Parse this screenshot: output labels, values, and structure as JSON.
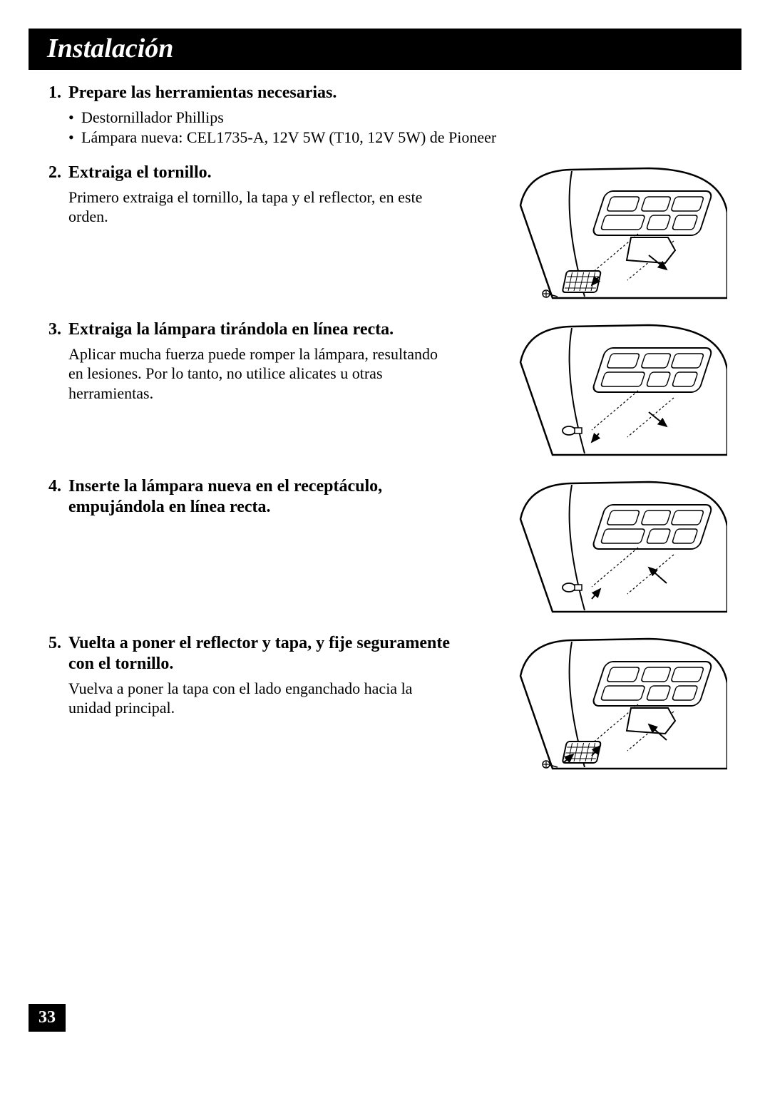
{
  "document": {
    "title": "Instalación",
    "page_number": "33",
    "colors": {
      "page_bg": "#ffffff",
      "bar_bg": "#000000",
      "bar_text": "#ffffff",
      "body_text": "#000000"
    },
    "fonts": {
      "title_size_pt": 28,
      "title_style": "italic bold",
      "heading_size_pt": 18,
      "body_size_pt": 16,
      "family": "Times New Roman"
    },
    "steps": [
      {
        "number": "1.",
        "title": "Prepare las herramientas necesarias.",
        "bullets": [
          "Destornillador Phillips",
          "Lámpara nueva: CEL1735-A, 12V 5W (T10, 12V 5W) de Pioneer"
        ],
        "has_figure": false
      },
      {
        "number": "2.",
        "title": "Extraiga el tornillo.",
        "body": "Primero extraiga el tornillo, la tapa y el reflector, en este orden.",
        "has_figure": true,
        "figure": {
          "show_cover": true,
          "show_bulb": false,
          "arrows": "out"
        }
      },
      {
        "number": "3.",
        "title": "Extraiga la lámpara tirándola en línea recta.",
        "body": "Aplicar mucha fuerza puede romper la lámpara, resultando en lesiones. Por lo tanto, no utilice alicates u otras herramientas.",
        "has_figure": true,
        "figure": {
          "show_cover": false,
          "show_bulb": true,
          "arrows": "out"
        }
      },
      {
        "number": "4.",
        "title": "Inserte la lámpara nueva en el receptáculo, empujándola en línea recta.",
        "has_figure": true,
        "figure": {
          "show_cover": false,
          "show_bulb": true,
          "arrows": "in"
        }
      },
      {
        "number": "5.",
        "title": "Vuelta a poner el reflector y tapa, y fije seguramente con el tornillo.",
        "body": "Vuelva a poner la tapa con el lado enganchado hacia la unidad principal.",
        "has_figure": true,
        "figure": {
          "show_cover": true,
          "show_bulb": false,
          "arrows": "in"
        }
      }
    ]
  }
}
